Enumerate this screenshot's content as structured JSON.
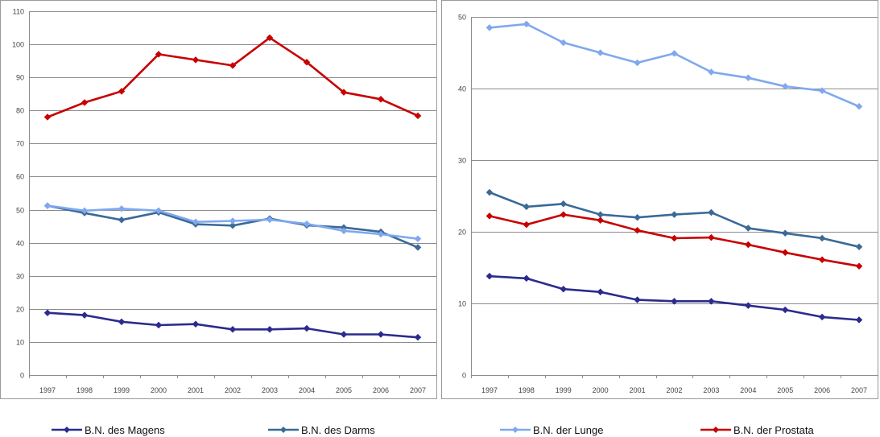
{
  "colors": {
    "magen": "#2B2B8E",
    "darm": "#3A6A97",
    "lunge": "#7FA8EE",
    "prostata": "#C80000",
    "grid": "#8C8C8C",
    "axis": "#8C8C8C",
    "frame": "#9A9A9A"
  },
  "legend": [
    {
      "label": "B.N. des Magens",
      "series_key": "magen"
    },
    {
      "label": "B.N. des Darms",
      "series_key": "darm"
    },
    {
      "label": "B.N. der Lunge",
      "series_key": "lunge"
    },
    {
      "label": "B.N. der Prostata",
      "series_key": "prostata"
    }
  ],
  "chart_data": [
    {
      "type": "line",
      "categories": [
        "1997",
        "1998",
        "1999",
        "2000",
        "2001",
        "2002",
        "2003",
        "2004",
        "2005",
        "2006",
        "2007"
      ],
      "ylim": [
        0,
        110
      ],
      "yticks": [
        0,
        10,
        20,
        30,
        40,
        50,
        60,
        70,
        80,
        90,
        100,
        110
      ],
      "grid": "horizontal",
      "series": [
        {
          "name": "B.N. der Prostata",
          "key": "prostata",
          "values": [
            78.0,
            82.4,
            85.8,
            97.0,
            95.3,
            93.6,
            102.0,
            94.6,
            85.5,
            83.4,
            78.4
          ]
        },
        {
          "name": "B.N. des Darms",
          "key": "darm",
          "values": [
            51.2,
            49.0,
            46.9,
            49.2,
            45.6,
            45.2,
            47.3,
            45.3,
            44.6,
            43.3,
            38.6
          ]
        },
        {
          "name": "B.N. der Lunge",
          "key": "lunge",
          "values": [
            51.2,
            49.7,
            50.3,
            49.7,
            46.3,
            46.6,
            47.0,
            45.7,
            43.6,
            42.6,
            41.2
          ]
        },
        {
          "name": "B.N. des Magens",
          "key": "magen",
          "values": [
            18.8,
            18.1,
            16.1,
            15.1,
            15.4,
            13.8,
            13.8,
            14.1,
            12.3,
            12.3,
            11.4
          ]
        }
      ]
    },
    {
      "type": "line",
      "categories": [
        "1997",
        "1998",
        "1999",
        "2000",
        "2001",
        "2002",
        "2003",
        "2004",
        "2005",
        "2006",
        "2007"
      ],
      "ylim": [
        0,
        50
      ],
      "yticks": [
        0,
        10,
        20,
        30,
        40,
        50
      ],
      "grid": "horizontal",
      "series": [
        {
          "name": "B.N. der Lunge",
          "key": "lunge",
          "values": [
            48.5,
            49.0,
            46.4,
            45.0,
            43.6,
            44.9,
            42.3,
            41.5,
            40.3,
            39.7,
            37.5
          ]
        },
        {
          "name": "B.N. des Darms",
          "key": "darm",
          "values": [
            25.5,
            23.5,
            23.9,
            22.4,
            22.0,
            22.4,
            22.7,
            20.5,
            19.8,
            19.1,
            17.9
          ]
        },
        {
          "name": "B.N. der Prostata",
          "key": "prostata",
          "values": [
            22.2,
            21.0,
            22.4,
            21.6,
            20.2,
            19.1,
            19.2,
            18.2,
            17.1,
            16.1,
            15.2
          ]
        },
        {
          "name": "B.N. des Magens",
          "key": "magen",
          "values": [
            13.8,
            13.5,
            12.0,
            11.6,
            10.5,
            10.3,
            10.3,
            9.7,
            9.1,
            8.1,
            7.7
          ]
        }
      ]
    }
  ]
}
